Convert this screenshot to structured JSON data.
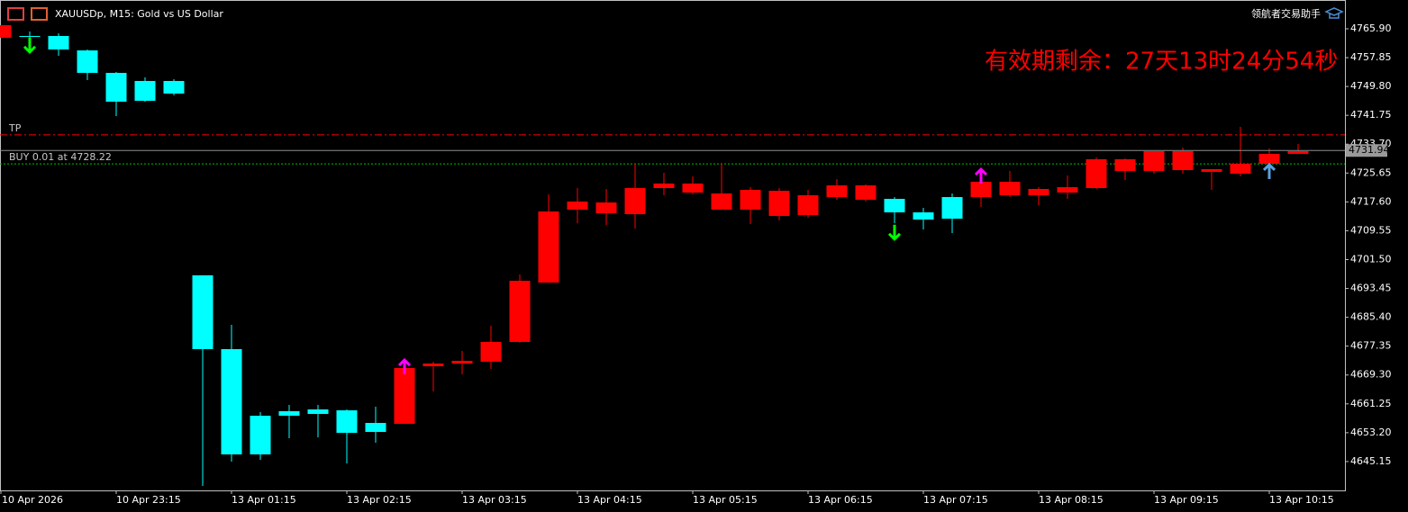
{
  "chart_data": {
    "type": "candlestick",
    "title": "XAUUSDp, M15:  Gold vs US Dollar",
    "brand": "领航者交易助手",
    "notice": "有效期剩余：27天13时24分54秒",
    "categories": [
      "10 Apr 2026",
      null,
      null,
      null,
      "10 Apr 23:15",
      null,
      null,
      null,
      "13 Apr 01:15",
      null,
      null,
      null,
      "13 Apr 02:15",
      null,
      null,
      null,
      "13 Apr 03:15",
      null,
      null,
      null,
      "13 Apr 04:15",
      null,
      null,
      null,
      "13 Apr 05:15",
      null,
      null,
      null,
      "13 Apr 06:15",
      null,
      null,
      null,
      "13 Apr 07:15",
      null,
      null,
      null,
      "13 Apr 08:15",
      null,
      null,
      null,
      "13 Apr 09:15",
      null,
      null,
      null,
      "13 Apr 10:15",
      null
    ],
    "open": [
      4763.39,
      4763.89,
      4763.89,
      4759.87,
      4753.6,
      4751.34,
      4751.34,
      4697.11,
      4676.52,
      4657.94,
      4659.2,
      4659.7,
      4659.45,
      4655.93,
      4655.68,
      4671.75,
      4672.5,
      4673.01,
      4678.53,
      4695.1,
      4715.44,
      4714.43,
      4714.18,
      4721.46,
      4720.21,
      4715.44,
      4715.44,
      4713.68,
      4713.93,
      4718.95,
      4718.2,
      4718.45,
      4714.68,
      4718.95,
      4718.95,
      4719.45,
      4719.45,
      4720.21,
      4721.46,
      4726.23,
      4726.23,
      4726.48,
      4725.98,
      4725.48,
      4728.24,
      4731.0
    ],
    "high": [
      4766.9,
      4765.15,
      4764.65,
      4760.13,
      4753.85,
      4752.34,
      4751.84,
      4697.11,
      4683.3,
      4658.95,
      4660.95,
      4660.95,
      4659.7,
      4660.45,
      4672.25,
      4673.0,
      4676.02,
      4683.05,
      4697.36,
      4719.7,
      4721.46,
      4721.21,
      4728.24,
      4725.73,
      4724.73,
      4728.24,
      4721.71,
      4721.46,
      4720.96,
      4723.97,
      4722.47,
      4718.95,
      4715.94,
      4719.95,
      4726.23,
      4726.23,
      4721.71,
      4724.98,
      4730.0,
      4729.75,
      4731.76,
      4732.76,
      4726.73,
      4738.53,
      4732.51,
      4733.76
    ],
    "low": [
      4763.39,
      4762.64,
      4758.37,
      4751.59,
      4741.55,
      4745.56,
      4747.32,
      4638.36,
      4645.14,
      4645.64,
      4651.66,
      4651.92,
      4644.64,
      4650.41,
      4655.68,
      4664.72,
      4669.49,
      4670.99,
      4678.28,
      4695.1,
      4711.67,
      4711.17,
      4710.16,
      4719.45,
      4719.7,
      4715.44,
      4711.42,
      4712.42,
      4713.17,
      4718.2,
      4717.7,
      4711.67,
      4709.91,
      4708.91,
      4716.19,
      4718.95,
      4716.69,
      4718.45,
      4721.21,
      4723.72,
      4725.48,
      4725.48,
      4720.96,
      4724.73,
      4727.24,
      4731.0
    ],
    "close": [
      4766.9,
      4763.89,
      4760.13,
      4753.6,
      4745.56,
      4745.81,
      4747.82,
      4676.52,
      4647.15,
      4647.15,
      4657.94,
      4658.44,
      4653.17,
      4653.42,
      4671.25,
      4672.5,
      4673.26,
      4678.53,
      4695.6,
      4714.93,
      4717.7,
      4717.44,
      4721.46,
      4722.72,
      4722.72,
      4719.95,
      4720.96,
      4720.71,
      4719.45,
      4722.21,
      4722.21,
      4714.68,
      4712.67,
      4712.92,
      4723.22,
      4723.22,
      4721.21,
      4721.71,
      4729.5,
      4729.5,
      4731.76,
      4731.76,
      4726.73,
      4728.24,
      4731.0,
      4731.76
    ],
    "up_color": "#ff0000",
    "down_color": "#00ffff",
    "ylim": [
      4637.1,
      4773.93
    ],
    "yticks": [
      {
        "value": 4765.9,
        "label": "4765.90"
      },
      {
        "value": 4757.85,
        "label": "4757.85"
      },
      {
        "value": 4749.8,
        "label": "4749.80"
      },
      {
        "value": 4741.75,
        "label": "4741.75"
      },
      {
        "value": 4733.7,
        "label": "4733.70"
      },
      {
        "value": 4725.65,
        "label": "4725.65"
      },
      {
        "value": 4717.6,
        "label": "4717.60"
      },
      {
        "value": 4709.55,
        "label": "4709.55"
      },
      {
        "value": 4701.5,
        "label": "4701.50"
      },
      {
        "value": 4693.45,
        "label": "4693.45"
      },
      {
        "value": 4685.4,
        "label": "4685.40"
      },
      {
        "value": 4677.35,
        "label": "4677.35"
      },
      {
        "value": 4669.3,
        "label": "4669.30"
      },
      {
        "value": 4661.25,
        "label": "4661.25"
      },
      {
        "value": 4653.2,
        "label": "4653.20"
      },
      {
        "value": 4645.15,
        "label": "4645.15"
      }
    ],
    "levels": [
      {
        "label": "TP",
        "value": 4736.3,
        "color": "#ff0000"
      },
      {
        "label": "BUY 0.01 at 4728.22",
        "value": 4728.22,
        "color": "#00c000"
      }
    ],
    "last_price": 4731.94,
    "signals": [
      {
        "direction": "down",
        "color": "#00ff00",
        "index": 1,
        "price": 4759.4
      },
      {
        "direction": "down",
        "color": "#00ff00",
        "index": 31,
        "price": 4707.2
      },
      {
        "direction": "up",
        "color": "#ff00ff",
        "index": 14,
        "price": 4673.5
      },
      {
        "direction": "up",
        "color": "#ff00ff",
        "index": 34,
        "price": 4726.7
      },
      {
        "direction": "up",
        "color": "#5aa0e0",
        "index": 44,
        "price": 4728.0
      }
    ]
  }
}
